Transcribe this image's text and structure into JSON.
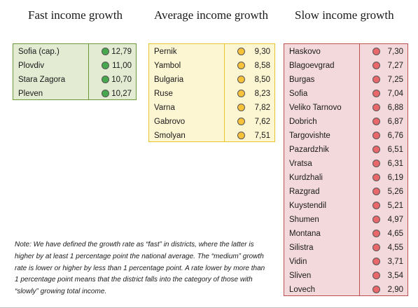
{
  "headings": {
    "fast": "Fast income growth",
    "average": "Average income growth",
    "slow": "Slow income growth"
  },
  "colors": {
    "fast_bg": "#e3ebd3",
    "fast_border": "#6a9b3a",
    "fast_dot": "#47a84d",
    "average_bg": "#fdf6d3",
    "average_border": "#e6c42c",
    "average_dot": "#f7c23a",
    "slow_bg": "#f3d9db",
    "slow_border": "#c0504d",
    "slow_dot": "#e8676b"
  },
  "fast": [
    {
      "name": "Sofia (cap.)",
      "value": "12,79"
    },
    {
      "name": "Plovdiv",
      "value": "11,00"
    },
    {
      "name": "Stara Zagora",
      "value": "10,70"
    },
    {
      "name": "Pleven",
      "value": "10,27"
    }
  ],
  "average": [
    {
      "name": "Pernik",
      "value": "9,30"
    },
    {
      "name": "Yambol",
      "value": "8,58"
    },
    {
      "name": "Bulgaria",
      "value": "8,50"
    },
    {
      "name": "Ruse",
      "value": "8,23"
    },
    {
      "name": "Varna",
      "value": "7,82"
    },
    {
      "name": "Gabrovo",
      "value": "7,62"
    },
    {
      "name": "Smolyan",
      "value": "7,51"
    }
  ],
  "slow": [
    {
      "name": "Haskovo",
      "value": "7,30"
    },
    {
      "name": "Blagoevgrad",
      "value": "7,27"
    },
    {
      "name": "Burgas",
      "value": "7,25"
    },
    {
      "name": "Sofia",
      "value": "7,04"
    },
    {
      "name": "Veliko Tarnovo",
      "value": "6,88"
    },
    {
      "name": "Dobrich",
      "value": "6,87"
    },
    {
      "name": "Targovishte",
      "value": "6,76"
    },
    {
      "name": "Pazardzhik",
      "value": "6,51"
    },
    {
      "name": "Vratsa",
      "value": "6,31"
    },
    {
      "name": "Kurdzhali",
      "value": "6,19"
    },
    {
      "name": "Razgrad",
      "value": "5,26"
    },
    {
      "name": "Kuystendil",
      "value": "5,21"
    },
    {
      "name": "Shumen",
      "value": "4,97"
    },
    {
      "name": "Montana",
      "value": "4,65"
    },
    {
      "name": "Silistra",
      "value": "4,55"
    },
    {
      "name": "Vidin",
      "value": "3,71"
    },
    {
      "name": "Sliven",
      "value": "3,54"
    },
    {
      "name": "Lovech",
      "value": "2,90"
    }
  ],
  "note": "Note: We have defined the growth rate as “fast” in districts, where the latter is higher by at least 1 percentage point the national average. The “medium” growth rate is lower or higher by less than 1 percentage point. A rate lower by more than 1 percentage point means that the district falls into the category of those with “slowly” growing total income."
}
